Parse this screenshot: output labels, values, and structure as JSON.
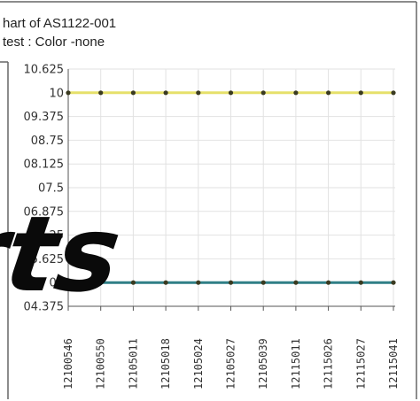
{
  "header": {
    "title_line1": "hart of AS1122-001",
    "title_line2": "test : Color -none"
  },
  "watermark": {
    "text": "rts"
  },
  "colors": {
    "series_upper": "#e6e06a",
    "series_lower": "#2f7f86",
    "point_marker": "#3a3a20",
    "grid": "#e2e2e2",
    "frame": "#555555",
    "axis": "#555555",
    "watermark": "#0a0a0a"
  },
  "chart_data": {
    "type": "line",
    "title": "hart of AS1122-001",
    "subtitle": "test : Color -none",
    "xlabel": "",
    "ylabel": "",
    "grid": true,
    "ylim": [
      4.375,
      10.625
    ],
    "yticks": [
      "10.625",
      "10",
      "09.375",
      "08.75",
      "08.125",
      "07.5",
      "06.875",
      "06.25",
      "05.625",
      "05",
      "04.375"
    ],
    "ytick_values": [
      10.625,
      10,
      9.375,
      8.75,
      8.125,
      7.5,
      6.875,
      6.25,
      5.625,
      5,
      4.375
    ],
    "categories": [
      "12100546",
      "12100550",
      "12105011",
      "12105018",
      "12105024",
      "12105027",
      "12105039",
      "12115011",
      "12115026",
      "12115027",
      "12115041"
    ],
    "series": [
      {
        "color": "#e6e06a",
        "values": [
          10,
          10,
          10,
          10,
          10,
          10,
          10,
          10,
          10,
          10,
          10
        ]
      },
      {
        "color": "#2f7f86",
        "values": [
          5,
          5,
          5,
          5,
          5,
          5,
          5,
          5,
          5,
          5,
          5
        ]
      }
    ]
  }
}
